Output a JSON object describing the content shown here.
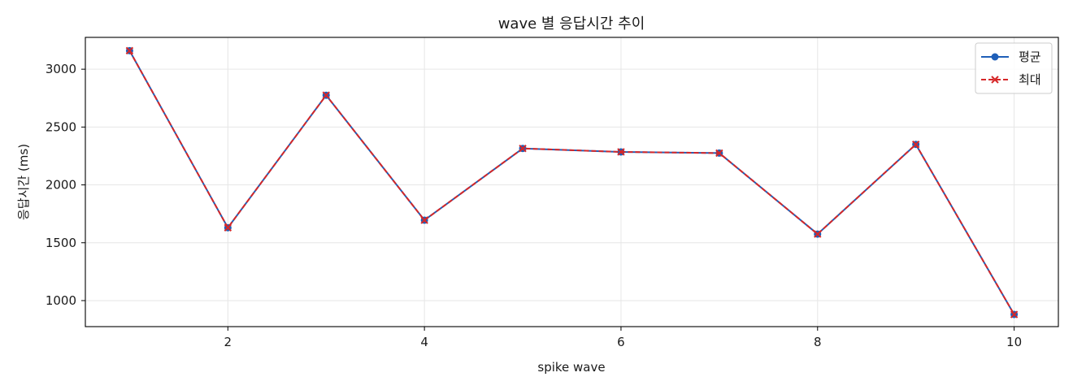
{
  "chart_data": {
    "type": "line",
    "title": "wave 별 응답시간 추이",
    "xlabel": "spike wave",
    "ylabel": "응답시간 (ms)",
    "x": [
      1,
      2,
      3,
      4,
      5,
      6,
      7,
      8,
      9,
      10
    ],
    "xlim": [
      0.55,
      10.45
    ],
    "ylim": [
      775,
      3275
    ],
    "x_ticks": [
      2,
      4,
      6,
      8,
      10
    ],
    "y_ticks": [
      1000,
      1500,
      2000,
      2500,
      3000
    ],
    "grid": true,
    "legend_position": "top-right",
    "series": [
      {
        "name": "평균",
        "values": [
          3160,
          1630,
          2775,
          1695,
          2315,
          2285,
          2275,
          1575,
          2350,
          880
        ],
        "color": "#1f5fb8",
        "marker": "circle",
        "line_style": "solid"
      },
      {
        "name": "최대",
        "values": [
          3160,
          1630,
          2775,
          1695,
          2315,
          2285,
          2275,
          1575,
          2350,
          880
        ],
        "color": "#d62728",
        "marker": "x",
        "line_style": "dashed"
      }
    ]
  }
}
